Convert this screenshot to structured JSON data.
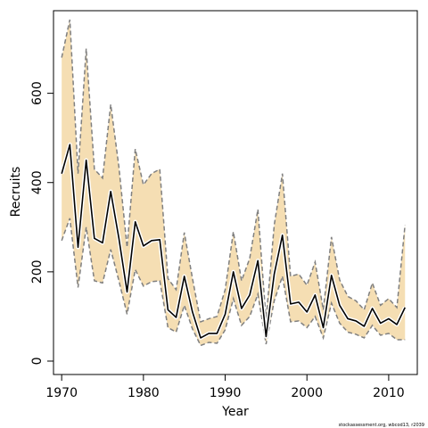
{
  "chart_data": {
    "type": "line",
    "title": "",
    "xlabel": "Year",
    "ylabel": "Recruits",
    "xlim": [
      1969.0,
      2013.5
    ],
    "ylim": [
      -30,
      785
    ],
    "xticks": [
      1970,
      1980,
      1990,
      2000,
      2010
    ],
    "yticks": [
      0,
      200,
      400,
      600
    ],
    "grid": false,
    "legend": "none",
    "credit": "stockassessment.org, wbcod13, r2039",
    "colors": {
      "band": "#f5deb3",
      "line": "#000000",
      "bound": "#808080"
    },
    "x": [
      1970,
      1971,
      1972,
      1973,
      1974,
      1975,
      1976,
      1977,
      1978,
      1979,
      1980,
      1981,
      1982,
      1983,
      1984,
      1985,
      1986,
      1987,
      1988,
      1989,
      1990,
      1991,
      1992,
      1993,
      1994,
      1995,
      1996,
      1997,
      1998,
      1999,
      2000,
      2001,
      2002,
      2003,
      2004,
      2005,
      2006,
      2007,
      2008,
      2009,
      2010,
      2011,
      2012
    ],
    "series": [
      {
        "role": "estimate",
        "values": [
          420,
          485,
          255,
          450,
          275,
          265,
          380,
          275,
          155,
          312,
          258,
          270,
          272,
          115,
          98,
          190,
          110,
          52,
          62,
          62,
          105,
          200,
          118,
          148,
          225,
          55,
          195,
          282,
          128,
          132,
          110,
          148,
          75,
          192,
          125,
          95,
          90,
          78,
          118,
          85,
          95,
          82,
          120
        ]
      },
      {
        "role": "upper",
        "values": [
          680,
          765,
          420,
          700,
          430,
          410,
          575,
          435,
          255,
          475,
          395,
          420,
          430,
          185,
          160,
          288,
          185,
          88,
          95,
          100,
          160,
          290,
          180,
          230,
          340,
          92,
          305,
          420,
          190,
          195,
          170,
          222,
          115,
          278,
          182,
          145,
          135,
          115,
          175,
          125,
          140,
          120,
          305
        ]
      },
      {
        "role": "lower",
        "values": [
          270,
          320,
          165,
          300,
          180,
          175,
          250,
          180,
          105,
          205,
          168,
          178,
          180,
          75,
          65,
          125,
          72,
          35,
          42,
          40,
          70,
          140,
          80,
          100,
          150,
          38,
          135,
          190,
          88,
          90,
          75,
          100,
          52,
          130,
          85,
          65,
          60,
          52,
          80,
          58,
          62,
          48,
          48
        ]
      }
    ]
  }
}
